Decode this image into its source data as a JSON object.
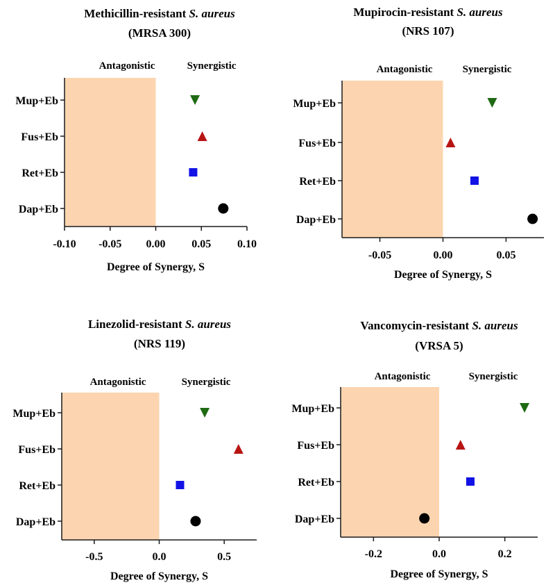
{
  "colors": {
    "shade": "#fcd5b0",
    "axis": "#1a1a1a",
    "series": {
      "Mup+Eb": "#1e6a12",
      "Fus+Eb": "#b81414",
      "Ret+Eb": "#1212e6",
      "Dap+Eb": "#000000"
    }
  },
  "chart_data": [
    {
      "type": "scatter",
      "title_main": "Methicillin-resistant ",
      "title_italic": "S. aureus",
      "subtitle": "(MRSA 300)",
      "region_left": "Antagonistic",
      "region_right": "Synergistic",
      "xlabel": "Degree of Synergy, S",
      "xlim": [
        -0.1,
        0.1
      ],
      "xticks": [
        -0.1,
        -0.05,
        0.0,
        0.05,
        0.1
      ],
      "xtick_labels": [
        "-0.10",
        "-0.05",
        "0.00",
        "0.05",
        "0.10"
      ],
      "categories": [
        "Mup+Eb",
        "Fus+Eb",
        "Ret+Eb",
        "Dap+Eb"
      ],
      "markers": [
        "triangle-down",
        "triangle-up",
        "square",
        "circle"
      ],
      "values": [
        0.043,
        0.051,
        0.041,
        0.074
      ]
    },
    {
      "type": "scatter",
      "title_main": "Mupirocin-resistant ",
      "title_italic": "S. aureus",
      "subtitle": "(NRS 107)",
      "region_left": "Antagonistic",
      "region_right": "Synergistic",
      "xlabel": "Degree of Synergy, S",
      "xlim": [
        -0.08,
        0.08
      ],
      "xticks": [
        -0.05,
        0.0,
        0.05
      ],
      "xtick_labels": [
        "-0.05",
        "0.00",
        "0.05"
      ],
      "categories": [
        "Mup+Eb",
        "Fus+Eb",
        "Ret+Eb",
        "Dap+Eb"
      ],
      "markers": [
        "triangle-down",
        "triangle-up",
        "square",
        "circle"
      ],
      "values": [
        0.039,
        0.006,
        0.025,
        0.071
      ]
    },
    {
      "type": "scatter",
      "title_main": "Linezolid-resistant ",
      "title_italic": "S. aureus",
      "subtitle": "(NRS 119)",
      "region_left": "Antagonistic",
      "region_right": "Synergistic",
      "xlabel": "Degree of Synergy, S",
      "xlim": [
        -0.75,
        0.75
      ],
      "xticks": [
        -0.5,
        0.0,
        0.5
      ],
      "xtick_labels": [
        "-0.5",
        "0.0",
        "0.5"
      ],
      "categories": [
        "Mup+Eb",
        "Fus+Eb",
        "Ret+Eb",
        "Dap+Eb"
      ],
      "markers": [
        "triangle-down",
        "triangle-up",
        "square",
        "circle"
      ],
      "values": [
        0.35,
        0.61,
        0.16,
        0.28
      ]
    },
    {
      "type": "scatter",
      "title_main": "Vancomycin-resistant ",
      "title_italic": "S. aureus",
      "subtitle": "(VRSA 5)",
      "region_left": "Antagonistic",
      "region_right": "Synergistic",
      "xlabel": "Degree of Synergy, S",
      "xlim": [
        -0.3,
        0.3
      ],
      "xticks": [
        -0.2,
        0.0,
        0.2
      ],
      "xtick_labels": [
        "-0.2",
        "0.0",
        "0.2"
      ],
      "categories": [
        "Mup+Eb",
        "Fus+Eb",
        "Ret+Eb",
        "Dap+Eb"
      ],
      "markers": [
        "triangle-down",
        "triangle-up",
        "square",
        "circle"
      ],
      "values": [
        0.26,
        0.065,
        0.095,
        -0.045
      ]
    }
  ]
}
